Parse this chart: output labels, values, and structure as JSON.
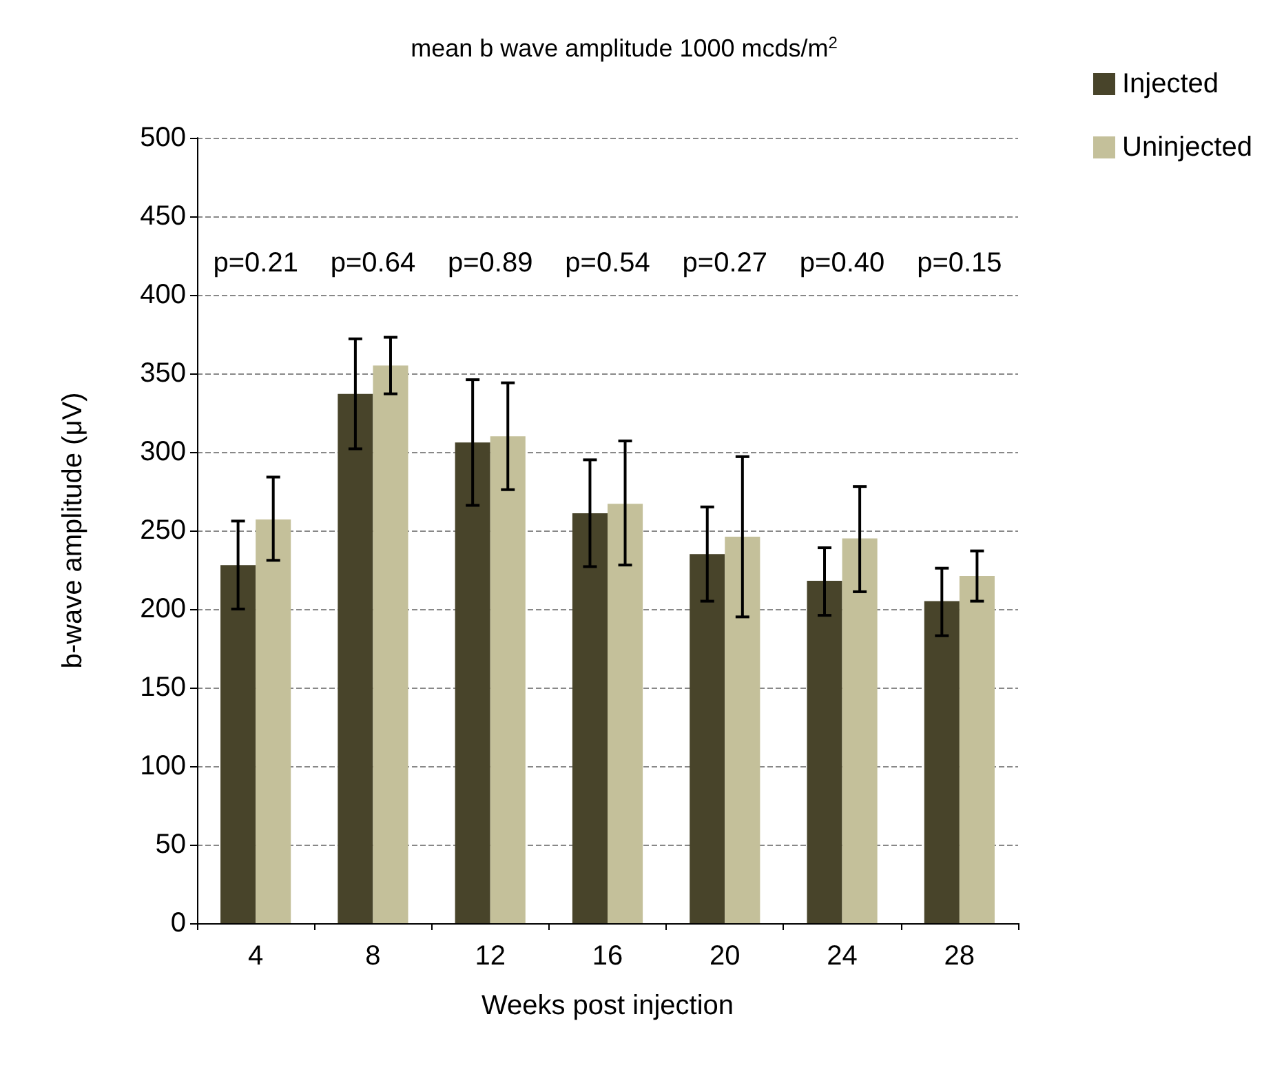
{
  "chart_data": {
    "type": "bar",
    "title": "mean b wave amplitude 1000 mcds/m$^{2}$",
    "xlabel": "Weeks post injection",
    "ylabel": "b-wave amplitude (μV)",
    "categories": [
      "4",
      "8",
      "12",
      "16",
      "20",
      "24",
      "28"
    ],
    "series": [
      {
        "name": "Injected",
        "color": "#48442a",
        "values": [
          228,
          337,
          306,
          261,
          235,
          218,
          205
        ],
        "errors": [
          [
            200,
            256
          ],
          [
            302,
            372
          ],
          [
            266,
            346
          ],
          [
            227,
            295
          ],
          [
            205,
            265
          ],
          [
            196,
            239
          ],
          [
            183,
            226
          ]
        ]
      },
      {
        "name": "Uninjected",
        "color": "#c4c09a",
        "values": [
          257,
          355,
          310,
          267,
          246,
          245,
          221
        ],
        "errors": [
          [
            231,
            284
          ],
          [
            337,
            373
          ],
          [
            276,
            344
          ],
          [
            228,
            307
          ],
          [
            195,
            297
          ],
          [
            211,
            278
          ],
          [
            205,
            237
          ]
        ]
      }
    ],
    "annotations": [
      "p=0.21",
      "p=0.64",
      "p=0.89",
      "p=0.54",
      "p=0.27",
      "p=0.40",
      "p=0.15"
    ],
    "ylim": [
      0,
      500
    ],
    "yticks": [
      0,
      50,
      100,
      150,
      200,
      250,
      300,
      350,
      400,
      450,
      500
    ],
    "grid": "y",
    "legend": "top right"
  }
}
